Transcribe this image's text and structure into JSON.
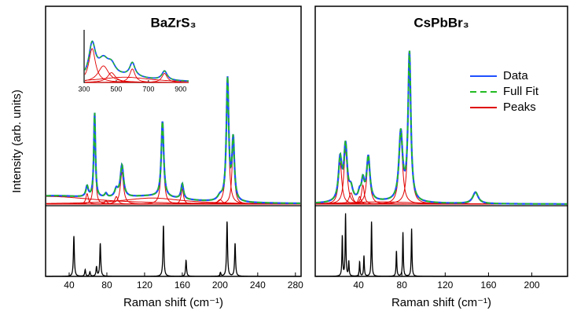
{
  "chart_data": [
    {
      "type": "spectrum",
      "title": "BaZrS₃",
      "xlabel": "Raman shift (cm⁻¹)",
      "ylabel": "Intensity (arb. units)",
      "xlim": [
        15,
        286
      ],
      "xticks": [
        40,
        80,
        120,
        160,
        200,
        240,
        280
      ],
      "ylim": [
        0,
        260
      ],
      "calc_ylim": [
        0,
        90
      ],
      "data_color": "#1f4fff",
      "fit_color": "#22bb22",
      "peak_color": "#e00000",
      "calc_color": "#000000",
      "peaks": [
        {
          "center": 59,
          "height": 14,
          "width": 1.5
        },
        {
          "center": 67,
          "height": 112,
          "width": 1
        },
        {
          "center": 79,
          "height": 5,
          "width": 1.5
        },
        {
          "center": 90,
          "height": 10,
          "width": 2
        },
        {
          "center": 96,
          "height": 42,
          "width": 2
        },
        {
          "center": 139,
          "height": 100,
          "width": 1.5
        },
        {
          "center": 160,
          "height": 20,
          "width": 1.5
        },
        {
          "center": 128,
          "height": 8,
          "width": 40
        },
        {
          "center": 20,
          "height": 10,
          "width": 60
        },
        {
          "center": 200,
          "height": 6,
          "width": 3
        },
        {
          "center": 208,
          "height": 160,
          "width": 1.5
        },
        {
          "center": 214,
          "height": 80,
          "width": 1.5
        }
      ],
      "calc_peaks": [
        {
          "center": 45,
          "height": 55,
          "width": 0.6
        },
        {
          "center": 57,
          "height": 9,
          "width": 0.6
        },
        {
          "center": 62,
          "height": 6,
          "width": 0.6
        },
        {
          "center": 69,
          "height": 13,
          "width": 0.6
        },
        {
          "center": 73,
          "height": 45,
          "width": 0.6
        },
        {
          "center": 140,
          "height": 70,
          "width": 0.6
        },
        {
          "center": 164,
          "height": 22,
          "width": 0.6
        },
        {
          "center": 200.5,
          "height": 5,
          "width": 0.6
        },
        {
          "center": 207.5,
          "height": 75,
          "width": 0.6
        },
        {
          "center": 216,
          "height": 45,
          "width": 0.6
        }
      ],
      "inset": {
        "xlim": [
          300,
          950
        ],
        "xticks": [
          300,
          500,
          700,
          900
        ],
        "ylim": [
          0,
          70
        ],
        "peaks": [
          {
            "center": 350,
            "height": 45,
            "width": 25
          },
          {
            "center": 420,
            "height": 22,
            "width": 40
          },
          {
            "center": 470,
            "height": 13,
            "width": 30
          },
          {
            "center": 600,
            "height": 18,
            "width": 20
          },
          {
            "center": 800,
            "height": 12,
            "width": 20
          },
          {
            "center": 550,
            "height": 7,
            "width": 200
          }
        ]
      }
    },
    {
      "type": "spectrum",
      "title": "CsPbBr₃",
      "xlabel": "Raman shift (cm⁻¹)",
      "xlim": [
        0,
        233
      ],
      "xticks": [
        40,
        80,
        120,
        160,
        200
      ],
      "ylim": [
        0,
        260
      ],
      "calc_ylim": [
        0,
        90
      ],
      "data_color": "#1f4fff",
      "fit_color": "#22bb22",
      "peak_color": "#e00000",
      "calc_color": "#000000",
      "legend": [
        "Data",
        "Full Fit",
        "Peaks"
      ],
      "peaks": [
        {
          "center": 23,
          "height": 55,
          "width": 1.8
        },
        {
          "center": 28,
          "height": 72,
          "width": 1.8
        },
        {
          "center": 33,
          "height": 15,
          "width": 2
        },
        {
          "center": 41,
          "height": 10,
          "width": 1.5
        },
        {
          "center": 44,
          "height": 25,
          "width": 1.5
        },
        {
          "center": 49,
          "height": 58,
          "width": 1.8
        },
        {
          "center": 79,
          "height": 90,
          "width": 2
        },
        {
          "center": 87,
          "height": 195,
          "width": 1.5
        },
        {
          "center": 148,
          "height": 15,
          "width": 3
        },
        {
          "center": 60,
          "height": 3,
          "width": 40
        }
      ],
      "calc_peaks": [
        {
          "center": 25,
          "height": 55,
          "width": 0.4
        },
        {
          "center": 28,
          "height": 85,
          "width": 0.4
        },
        {
          "center": 31,
          "height": 20,
          "width": 0.4
        },
        {
          "center": 41,
          "height": 20,
          "width": 0.4
        },
        {
          "center": 45,
          "height": 28,
          "width": 0.4
        },
        {
          "center": 52,
          "height": 75,
          "width": 0.4
        },
        {
          "center": 75,
          "height": 35,
          "width": 0.4
        },
        {
          "center": 81,
          "height": 60,
          "width": 0.4
        },
        {
          "center": 89,
          "height": 65,
          "width": 0.4
        }
      ]
    }
  ]
}
